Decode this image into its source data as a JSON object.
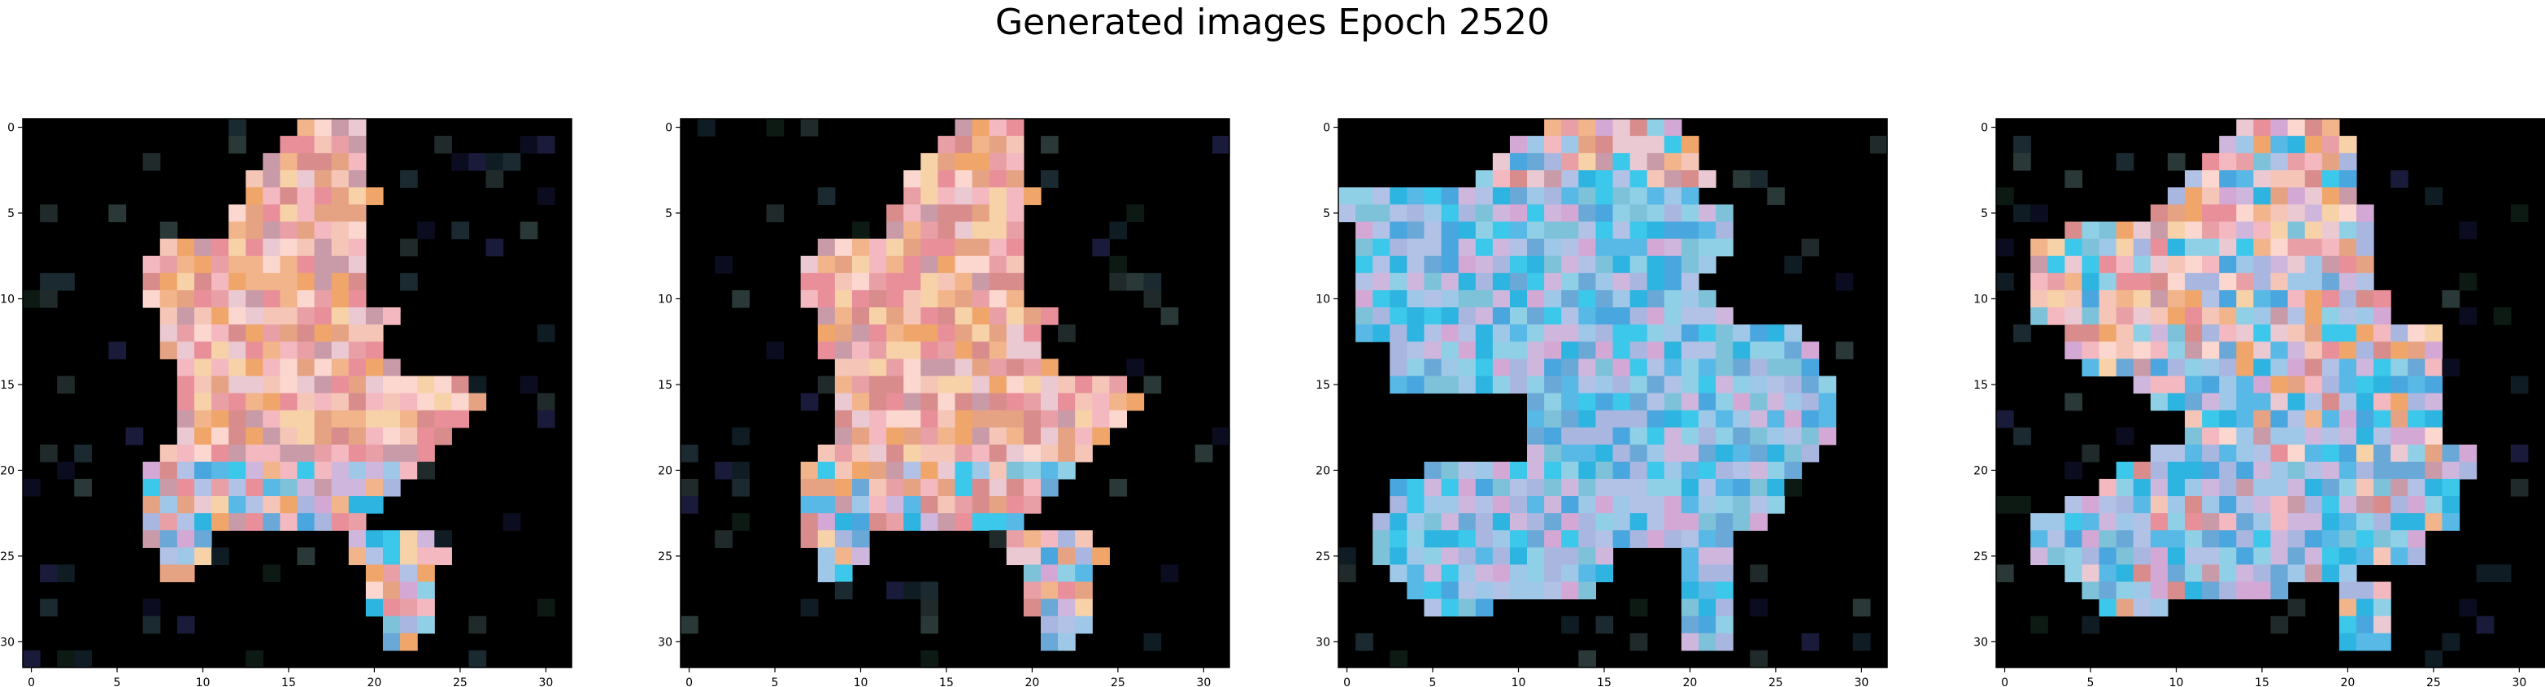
{
  "suptitle": "Generated images Epoch 2520",
  "chart_data": [
    {
      "type": "heatmap",
      "title": "",
      "xlabel": "",
      "ylabel": "",
      "xlim": [
        -0.5,
        31.5
      ],
      "ylim": [
        31.5,
        -0.5
      ],
      "xticks": [
        0,
        5,
        10,
        15,
        20,
        25,
        30
      ],
      "yticks": [
        0,
        5,
        10,
        15,
        20,
        25,
        30
      ],
      "grid": false,
      "palette": "peach-pink-dominant"
    },
    {
      "type": "heatmap",
      "title": "",
      "xlabel": "",
      "ylabel": "",
      "xlim": [
        -0.5,
        31.5
      ],
      "ylim": [
        31.5,
        -0.5
      ],
      "xticks": [
        0,
        5,
        10,
        15,
        20,
        25,
        30
      ],
      "yticks": [
        0,
        5,
        10,
        15,
        20,
        25,
        30
      ],
      "grid": false,
      "palette": "peach-pink-dominant"
    },
    {
      "type": "heatmap",
      "title": "",
      "xlabel": "",
      "ylabel": "",
      "xlim": [
        -0.5,
        31.5
      ],
      "ylim": [
        31.5,
        -0.5
      ],
      "xticks": [
        0,
        5,
        10,
        15,
        20,
        25,
        30
      ],
      "yticks": [
        0,
        5,
        10,
        15,
        20,
        25,
        30
      ],
      "grid": false,
      "palette": "cyan-blue-dominant"
    },
    {
      "type": "heatmap",
      "title": "",
      "xlabel": "",
      "ylabel": "",
      "xlim": [
        -0.5,
        31.5
      ],
      "ylim": [
        31.5,
        -0.5
      ],
      "xticks": [
        0,
        5,
        10,
        15,
        20,
        25,
        30
      ],
      "yticks": [
        0,
        5,
        10,
        15,
        20,
        25,
        30
      ],
      "grid": false,
      "palette": "mixed-pink-cyan"
    }
  ],
  "colors": {
    "background": "#000000",
    "peach": "#f2b48a",
    "pink": "#e8a0a6",
    "cyan": "#3cc8ea",
    "blue": "#6aa8d8"
  }
}
